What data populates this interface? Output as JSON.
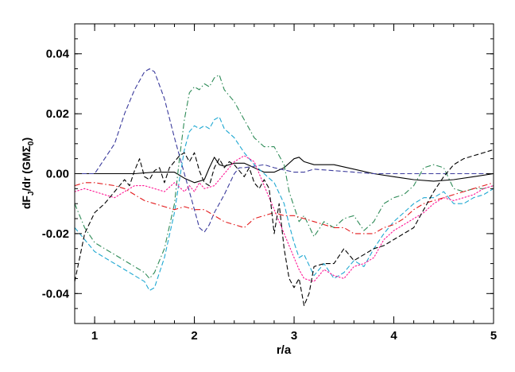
{
  "chart_data": {
    "type": "line",
    "title": "",
    "xlabel": "r/a",
    "ylabel_main": "dF",
    "ylabel_sub": "J",
    "ylabel_mid": "/dr (GMΣ",
    "ylabel_sub2": "0",
    "ylabel_end": ")",
    "xlim": [
      0.8,
      5.0
    ],
    "ylim": [
      -0.05,
      0.05
    ],
    "x_ticks": [
      {
        "value": 1,
        "label": "1"
      },
      {
        "value": 2,
        "label": "2"
      },
      {
        "value": 3,
        "label": "3"
      },
      {
        "value": 4,
        "label": "4"
      },
      {
        "value": 5,
        "label": "5"
      }
    ],
    "y_ticks": [
      {
        "value": -0.04,
        "label": "-0.04"
      },
      {
        "value": -0.02,
        "label": "-0.02"
      },
      {
        "value": 0.0,
        "label": "0.00"
      },
      {
        "value": 0.02,
        "label": "0.02"
      },
      {
        "value": 0.04,
        "label": "0.04"
      }
    ],
    "x_minor_step": 0.2,
    "y_minor_step": 0.005,
    "grid": false,
    "series": [
      {
        "color": "#000000",
        "style": "solid",
        "x": [
          0.8,
          1.0,
          1.2,
          1.4,
          1.6,
          1.8,
          1.9,
          2.0,
          2.1,
          2.15,
          2.2,
          2.25,
          2.3,
          2.4,
          2.5,
          2.6,
          2.7,
          2.8,
          2.9,
          3.0,
          3.05,
          3.1,
          3.2,
          3.4,
          3.6,
          3.8,
          4.0,
          4.2,
          4.4,
          4.6,
          4.8,
          5.0
        ],
        "y": [
          0.0,
          0.0,
          0.0,
          0.0,
          0.0005,
          0.0005,
          -0.0015,
          -0.003,
          -0.002,
          0.002,
          0.0055,
          0.003,
          0.0025,
          0.0035,
          0.0035,
          0.002,
          0.0005,
          0.0005,
          0.002,
          0.005,
          0.0055,
          0.004,
          0.003,
          0.003,
          0.0015,
          0.0,
          -0.001,
          -0.002,
          -0.0025,
          -0.002,
          -0.001,
          0.0
        ]
      },
      {
        "color": "#3b3b9c",
        "style": "dashed",
        "x": [
          0.8,
          1.0,
          1.2,
          1.3,
          1.4,
          1.5,
          1.55,
          1.6,
          1.7,
          1.8,
          1.9,
          2.0,
          2.05,
          2.1,
          2.15,
          2.2,
          2.3,
          2.4,
          2.45,
          2.5,
          2.6,
          2.7,
          2.8,
          3.0,
          3.1,
          3.2,
          3.4,
          3.6,
          3.8,
          4.0,
          4.2,
          4.4,
          4.6,
          4.8,
          5.0
        ],
        "y": [
          0.0,
          0.0,
          0.01,
          0.02,
          0.028,
          0.034,
          0.035,
          0.034,
          0.025,
          0.012,
          0.0,
          -0.012,
          -0.018,
          -0.0195,
          -0.017,
          -0.013,
          -0.007,
          0.0,
          0.002,
          0.002,
          0.0025,
          0.003,
          0.002,
          0.0005,
          0.0005,
          0.0015,
          0.001,
          0.0005,
          0.0,
          0.0,
          0.0,
          0.0,
          0.0,
          0.0,
          0.0
        ]
      },
      {
        "color": "#2e8b57",
        "style": "dashdot",
        "x": [
          0.8,
          0.9,
          1.0,
          1.1,
          1.2,
          1.3,
          1.4,
          1.5,
          1.55,
          1.6,
          1.7,
          1.8,
          1.85,
          1.9,
          1.95,
          2.0,
          2.05,
          2.1,
          2.15,
          2.2,
          2.25,
          2.3,
          2.4,
          2.5,
          2.6,
          2.7,
          2.8,
          2.9,
          2.95,
          3.0,
          3.05,
          3.1,
          3.2,
          3.3,
          3.4,
          3.5,
          3.6,
          3.7,
          3.8,
          3.9,
          4.0,
          4.1,
          4.2,
          4.3,
          4.4,
          4.5,
          4.6,
          4.7,
          4.8,
          4.9,
          5.0
        ],
        "y": [
          -0.01,
          -0.018,
          -0.023,
          -0.025,
          -0.027,
          -0.029,
          -0.031,
          -0.033,
          -0.035,
          -0.033,
          -0.025,
          -0.01,
          0.005,
          0.018,
          0.027,
          0.029,
          0.028,
          0.03,
          0.029,
          0.032,
          0.033,
          0.028,
          0.024,
          0.018,
          0.012,
          0.009,
          0.009,
          0.003,
          -0.006,
          -0.011,
          -0.016,
          -0.014,
          -0.021,
          -0.016,
          -0.018,
          -0.015,
          -0.014,
          -0.019,
          -0.016,
          -0.01,
          -0.008,
          -0.007,
          -0.004,
          0.002,
          0.003,
          0.002,
          -0.005,
          -0.006,
          -0.005,
          -0.005,
          -0.004
        ]
      },
      {
        "color": "#1fa8d2",
        "style": "dashed",
        "x": [
          0.8,
          0.9,
          1.0,
          1.1,
          1.2,
          1.3,
          1.4,
          1.5,
          1.55,
          1.6,
          1.7,
          1.8,
          1.85,
          1.9,
          1.95,
          2.0,
          2.05,
          2.1,
          2.15,
          2.2,
          2.25,
          2.3,
          2.4,
          2.5,
          2.6,
          2.7,
          2.8,
          2.9,
          2.95,
          3.0,
          3.05,
          3.1,
          3.2,
          3.3,
          3.4,
          3.5,
          3.6,
          3.7,
          3.8,
          3.9,
          4.0,
          4.1,
          4.2,
          4.3,
          4.4,
          4.5,
          4.6,
          4.7,
          4.8,
          4.9,
          5.0
        ],
        "y": [
          -0.018,
          -0.022,
          -0.026,
          -0.028,
          -0.03,
          -0.032,
          -0.034,
          -0.036,
          -0.039,
          -0.038,
          -0.028,
          -0.013,
          -0.002,
          0.008,
          0.014,
          0.016,
          0.015,
          0.016,
          0.015,
          0.018,
          0.019,
          0.015,
          0.012,
          0.007,
          0.003,
          0.0,
          -0.003,
          -0.01,
          -0.017,
          -0.023,
          -0.028,
          -0.027,
          -0.034,
          -0.03,
          -0.035,
          -0.033,
          -0.029,
          -0.031,
          -0.025,
          -0.02,
          -0.016,
          -0.013,
          -0.01,
          -0.008,
          -0.008,
          -0.006,
          -0.01,
          -0.01,
          -0.008,
          -0.007,
          -0.005
        ]
      },
      {
        "color": "#ff1493",
        "style": "dotted",
        "x": [
          0.8,
          0.9,
          1.0,
          1.1,
          1.2,
          1.3,
          1.4,
          1.5,
          1.6,
          1.7,
          1.8,
          1.9,
          1.95,
          2.0,
          2.05,
          2.1,
          2.2,
          2.3,
          2.4,
          2.5,
          2.6,
          2.7,
          2.8,
          2.9,
          3.0,
          3.05,
          3.1,
          3.2,
          3.3,
          3.4,
          3.5,
          3.6,
          3.7,
          3.8,
          3.9,
          4.0,
          4.1,
          4.2,
          4.3,
          4.4,
          4.5,
          4.6,
          4.7,
          4.8,
          4.9,
          5.0
        ],
        "y": [
          -0.006,
          -0.005,
          -0.006,
          -0.007,
          -0.008,
          -0.006,
          -0.004,
          -0.004,
          -0.005,
          -0.006,
          -0.003,
          -0.006,
          -0.004,
          -0.006,
          -0.003,
          -0.005,
          -0.004,
          0.0,
          0.004,
          0.006,
          0.004,
          -0.004,
          -0.012,
          -0.02,
          -0.028,
          -0.032,
          -0.035,
          -0.036,
          -0.032,
          -0.034,
          -0.035,
          -0.031,
          -0.03,
          -0.028,
          -0.022,
          -0.019,
          -0.017,
          -0.015,
          -0.013,
          -0.01,
          -0.008,
          -0.009,
          -0.008,
          -0.007,
          -0.005,
          -0.004
        ]
      },
      {
        "color": "#e31a1c",
        "style": "dashdot",
        "x": [
          0.8,
          0.9,
          1.0,
          1.1,
          1.2,
          1.3,
          1.4,
          1.5,
          1.6,
          1.7,
          1.8,
          1.9,
          2.0,
          2.1,
          2.2,
          2.3,
          2.4,
          2.5,
          2.6,
          2.7,
          2.8,
          2.9,
          3.0,
          3.1,
          3.2,
          3.3,
          3.4,
          3.5,
          3.6,
          3.7,
          3.8,
          3.9,
          4.0,
          4.1,
          4.2,
          4.3,
          4.4,
          4.5,
          4.6,
          4.7,
          4.8,
          4.9,
          5.0
        ],
        "y": [
          -0.004,
          -0.003,
          -0.003,
          -0.0035,
          -0.004,
          -0.005,
          -0.007,
          -0.009,
          -0.01,
          -0.011,
          -0.012,
          -0.011,
          -0.012,
          -0.012,
          -0.014,
          -0.016,
          -0.017,
          -0.018,
          -0.015,
          -0.014,
          -0.013,
          -0.014,
          -0.014,
          -0.015,
          -0.016,
          -0.017,
          -0.018,
          -0.018,
          -0.02,
          -0.02,
          -0.02,
          -0.018,
          -0.017,
          -0.015,
          -0.012,
          -0.01,
          -0.009,
          -0.008,
          -0.007,
          -0.006,
          -0.005,
          -0.004,
          -0.003
        ]
      },
      {
        "color": "#000000",
        "style": "dashed",
        "x": [
          0.8,
          0.85,
          0.9,
          1.0,
          1.1,
          1.2,
          1.3,
          1.35,
          1.4,
          1.45,
          1.5,
          1.55,
          1.6,
          1.65,
          1.7,
          1.75,
          1.8,
          1.85,
          1.9,
          1.95,
          2.0,
          2.05,
          2.1,
          2.15,
          2.2,
          2.25,
          2.3,
          2.35,
          2.4,
          2.45,
          2.5,
          2.55,
          2.6,
          2.65,
          2.7,
          2.75,
          2.8,
          2.85,
          2.9,
          2.95,
          3.0,
          3.05,
          3.1,
          3.15,
          3.2,
          3.3,
          3.4,
          3.5,
          3.6,
          3.7,
          3.8,
          3.9,
          4.0,
          4.1,
          4.2,
          4.3,
          4.4,
          4.5,
          4.6,
          4.7,
          4.8,
          4.9,
          5.0
        ],
        "y": [
          -0.036,
          -0.028,
          -0.02,
          -0.013,
          -0.01,
          -0.006,
          -0.002,
          -0.004,
          0.001,
          0.005,
          -0.001,
          -0.002,
          0.001,
          0.002,
          -0.003,
          0.002,
          0.004,
          0.006,
          0.007,
          0.004,
          0.007,
          0.001,
          -0.003,
          -0.004,
          0.002,
          0.005,
          0.002,
          0.004,
          0.003,
          0.001,
          -0.001,
          0.002,
          -0.003,
          -0.005,
          -0.002,
          -0.005,
          -0.02,
          -0.01,
          -0.025,
          -0.035,
          -0.038,
          -0.035,
          -0.044,
          -0.04,
          -0.031,
          -0.03,
          -0.03,
          -0.025,
          -0.029,
          -0.027,
          -0.025,
          -0.024,
          -0.022,
          -0.02,
          -0.018,
          -0.012,
          -0.006,
          -0.001,
          0.003,
          0.005,
          0.006,
          0.007,
          0.008
        ]
      }
    ]
  }
}
